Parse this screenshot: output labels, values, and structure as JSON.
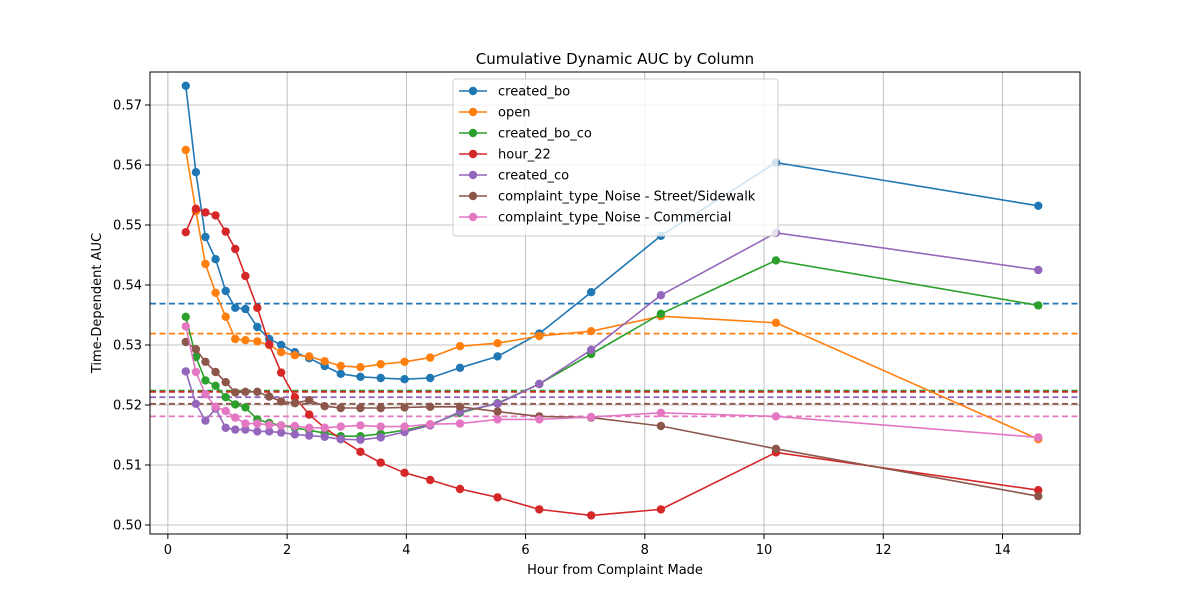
{
  "chart_data": {
    "type": "line",
    "title": "Cumulative Dynamic AUC by Column",
    "xlabel": "Hour from Complaint Made",
    "ylabel": "Time-Dependent AUC",
    "xlim": [
      -0.3,
      15.3
    ],
    "ylim": [
      0.4985,
      0.5755
    ],
    "xticks": [
      0,
      2,
      4,
      6,
      8,
      10,
      12,
      14
    ],
    "xtick_labels": [
      "0",
      "2",
      "4",
      "6",
      "8",
      "10",
      "12",
      "14"
    ],
    "yticks": [
      0.5,
      0.51,
      0.52,
      0.53,
      0.54,
      0.55,
      0.56,
      0.57
    ],
    "ytick_labels": [
      "0.50",
      "0.51",
      "0.52",
      "0.53",
      "0.54",
      "0.55",
      "0.56",
      "0.57"
    ],
    "grid": true,
    "legend_position": "upper-center",
    "x": [
      0.3,
      0.47,
      0.63,
      0.8,
      0.97,
      1.13,
      1.3,
      1.5,
      1.7,
      1.9,
      2.13,
      2.37,
      2.63,
      2.9,
      3.23,
      3.57,
      3.97,
      4.4,
      4.9,
      5.53,
      6.23,
      7.1,
      8.27,
      10.2,
      14.6
    ],
    "series": [
      {
        "name": "created_bo",
        "color": "#1f77b4",
        "values": [
          0.5732,
          0.5588,
          0.548,
          0.5443,
          0.539,
          0.5362,
          0.536,
          0.533,
          0.531,
          0.53,
          0.5288,
          0.5278,
          0.5265,
          0.5252,
          0.5247,
          0.5245,
          0.5243,
          0.5245,
          0.5262,
          0.5281,
          0.5319,
          0.5388,
          0.5482,
          0.5604,
          0.5532
        ],
        "mean": 0.5369
      },
      {
        "name": "open",
        "color": "#ff7f0e",
        "values": [
          0.5625,
          0.5523,
          0.5435,
          0.5387,
          0.5347,
          0.531,
          0.5308,
          0.5306,
          0.53,
          0.5288,
          0.5283,
          0.5281,
          0.5273,
          0.5265,
          0.5263,
          0.5268,
          0.5272,
          0.5279,
          0.5298,
          0.5303,
          0.5315,
          0.5323,
          0.5348,
          0.5337,
          0.5143
        ],
        "mean": 0.5319
      },
      {
        "name": "created_bo_co",
        "color": "#2ca02c",
        "values": [
          0.5347,
          0.528,
          0.5241,
          0.5232,
          0.5213,
          0.5201,
          0.5196,
          0.5176,
          0.517,
          0.5166,
          0.5162,
          0.5158,
          0.5153,
          0.5148,
          0.5148,
          0.5152,
          0.5158,
          0.5167,
          0.5187,
          0.5203,
          0.5235,
          0.5285,
          0.5352,
          0.5441,
          0.5366
        ],
        "mean": 0.5224
      },
      {
        "name": "hour_22",
        "color": "#d62728",
        "values": [
          0.5488,
          0.5527,
          0.5521,
          0.5516,
          0.5489,
          0.546,
          0.5415,
          0.5362,
          0.5301,
          0.5254,
          0.5213,
          0.5184,
          0.5162,
          0.5143,
          0.5122,
          0.5104,
          0.5087,
          0.5075,
          0.506,
          0.5046,
          0.5026,
          0.5016,
          0.5026,
          0.5121,
          0.5058
        ],
        "mean": 0.5222
      },
      {
        "name": "created_co",
        "color": "#9467bd",
        "values": [
          0.5256,
          0.5202,
          0.5174,
          0.5194,
          0.5162,
          0.5159,
          0.5159,
          0.5156,
          0.5156,
          0.5154,
          0.5151,
          0.5149,
          0.5147,
          0.5143,
          0.5142,
          0.5146,
          0.5155,
          0.5166,
          0.5189,
          0.5202,
          0.5235,
          0.5292,
          0.5383,
          0.5487,
          0.5425
        ],
        "mean": 0.5213
      },
      {
        "name": "complaint_type_Noise - Street/Sidewalk",
        "color": "#8c564b",
        "values": [
          0.5305,
          0.5293,
          0.5272,
          0.5255,
          0.5238,
          0.5221,
          0.5222,
          0.5222,
          0.5214,
          0.5206,
          0.5203,
          0.5208,
          0.5198,
          0.5195,
          0.5195,
          0.5195,
          0.5196,
          0.5197,
          0.5197,
          0.5189,
          0.5181,
          0.5179,
          0.5165,
          0.5127,
          0.5048
        ],
        "mean": 0.5202
      },
      {
        "name": "complaint_type_Noise - Commercial",
        "color": "#e377c2",
        "values": [
          0.5331,
          0.5255,
          0.5218,
          0.5197,
          0.519,
          0.5179,
          0.5169,
          0.5169,
          0.5167,
          0.5166,
          0.5165,
          0.5162,
          0.5162,
          0.5164,
          0.5166,
          0.5164,
          0.5164,
          0.5168,
          0.5169,
          0.5176,
          0.5176,
          0.518,
          0.5187,
          0.5181,
          0.5146
        ],
        "mean": 0.5181
      }
    ]
  }
}
